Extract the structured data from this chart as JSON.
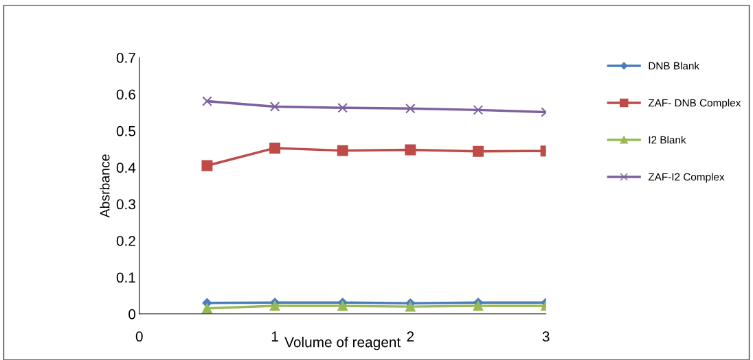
{
  "chart_data": {
    "type": "line",
    "xlabel": "Volume of reagent",
    "ylabel": "Absrbance",
    "x": [
      0.5,
      1,
      1.5,
      2,
      2.5,
      3
    ],
    "series": [
      {
        "name": "DNB Blank",
        "color": "#4a7ebb",
        "marker": "diamond",
        "values": [
          0.03,
          0.031,
          0.031,
          0.029,
          0.031,
          0.031
        ]
      },
      {
        "name": "ZAF- DNB Complex",
        "color": "#be4b48",
        "marker": "square",
        "values": [
          0.405,
          0.453,
          0.446,
          0.448,
          0.444,
          0.445
        ]
      },
      {
        "name": "I2 Blank",
        "color": "#98b954",
        "marker": "triangle",
        "values": [
          0.015,
          0.022,
          0.022,
          0.02,
          0.022,
          0.022
        ]
      },
      {
        "name": "ZAF-I2 Complex",
        "color": "#7d60a0",
        "marker": "cross",
        "values": [
          0.581,
          0.566,
          0.563,
          0.561,
          0.557,
          0.551
        ]
      }
    ],
    "xlim": [
      0,
      3
    ],
    "xticks": [
      0,
      1,
      2,
      3
    ],
    "ylim": [
      0,
      0.7
    ],
    "yticks": [
      0,
      0.1,
      0.2,
      0.3,
      0.4,
      0.5,
      0.6,
      0.7
    ],
    "grid": false,
    "legend": "right"
  }
}
